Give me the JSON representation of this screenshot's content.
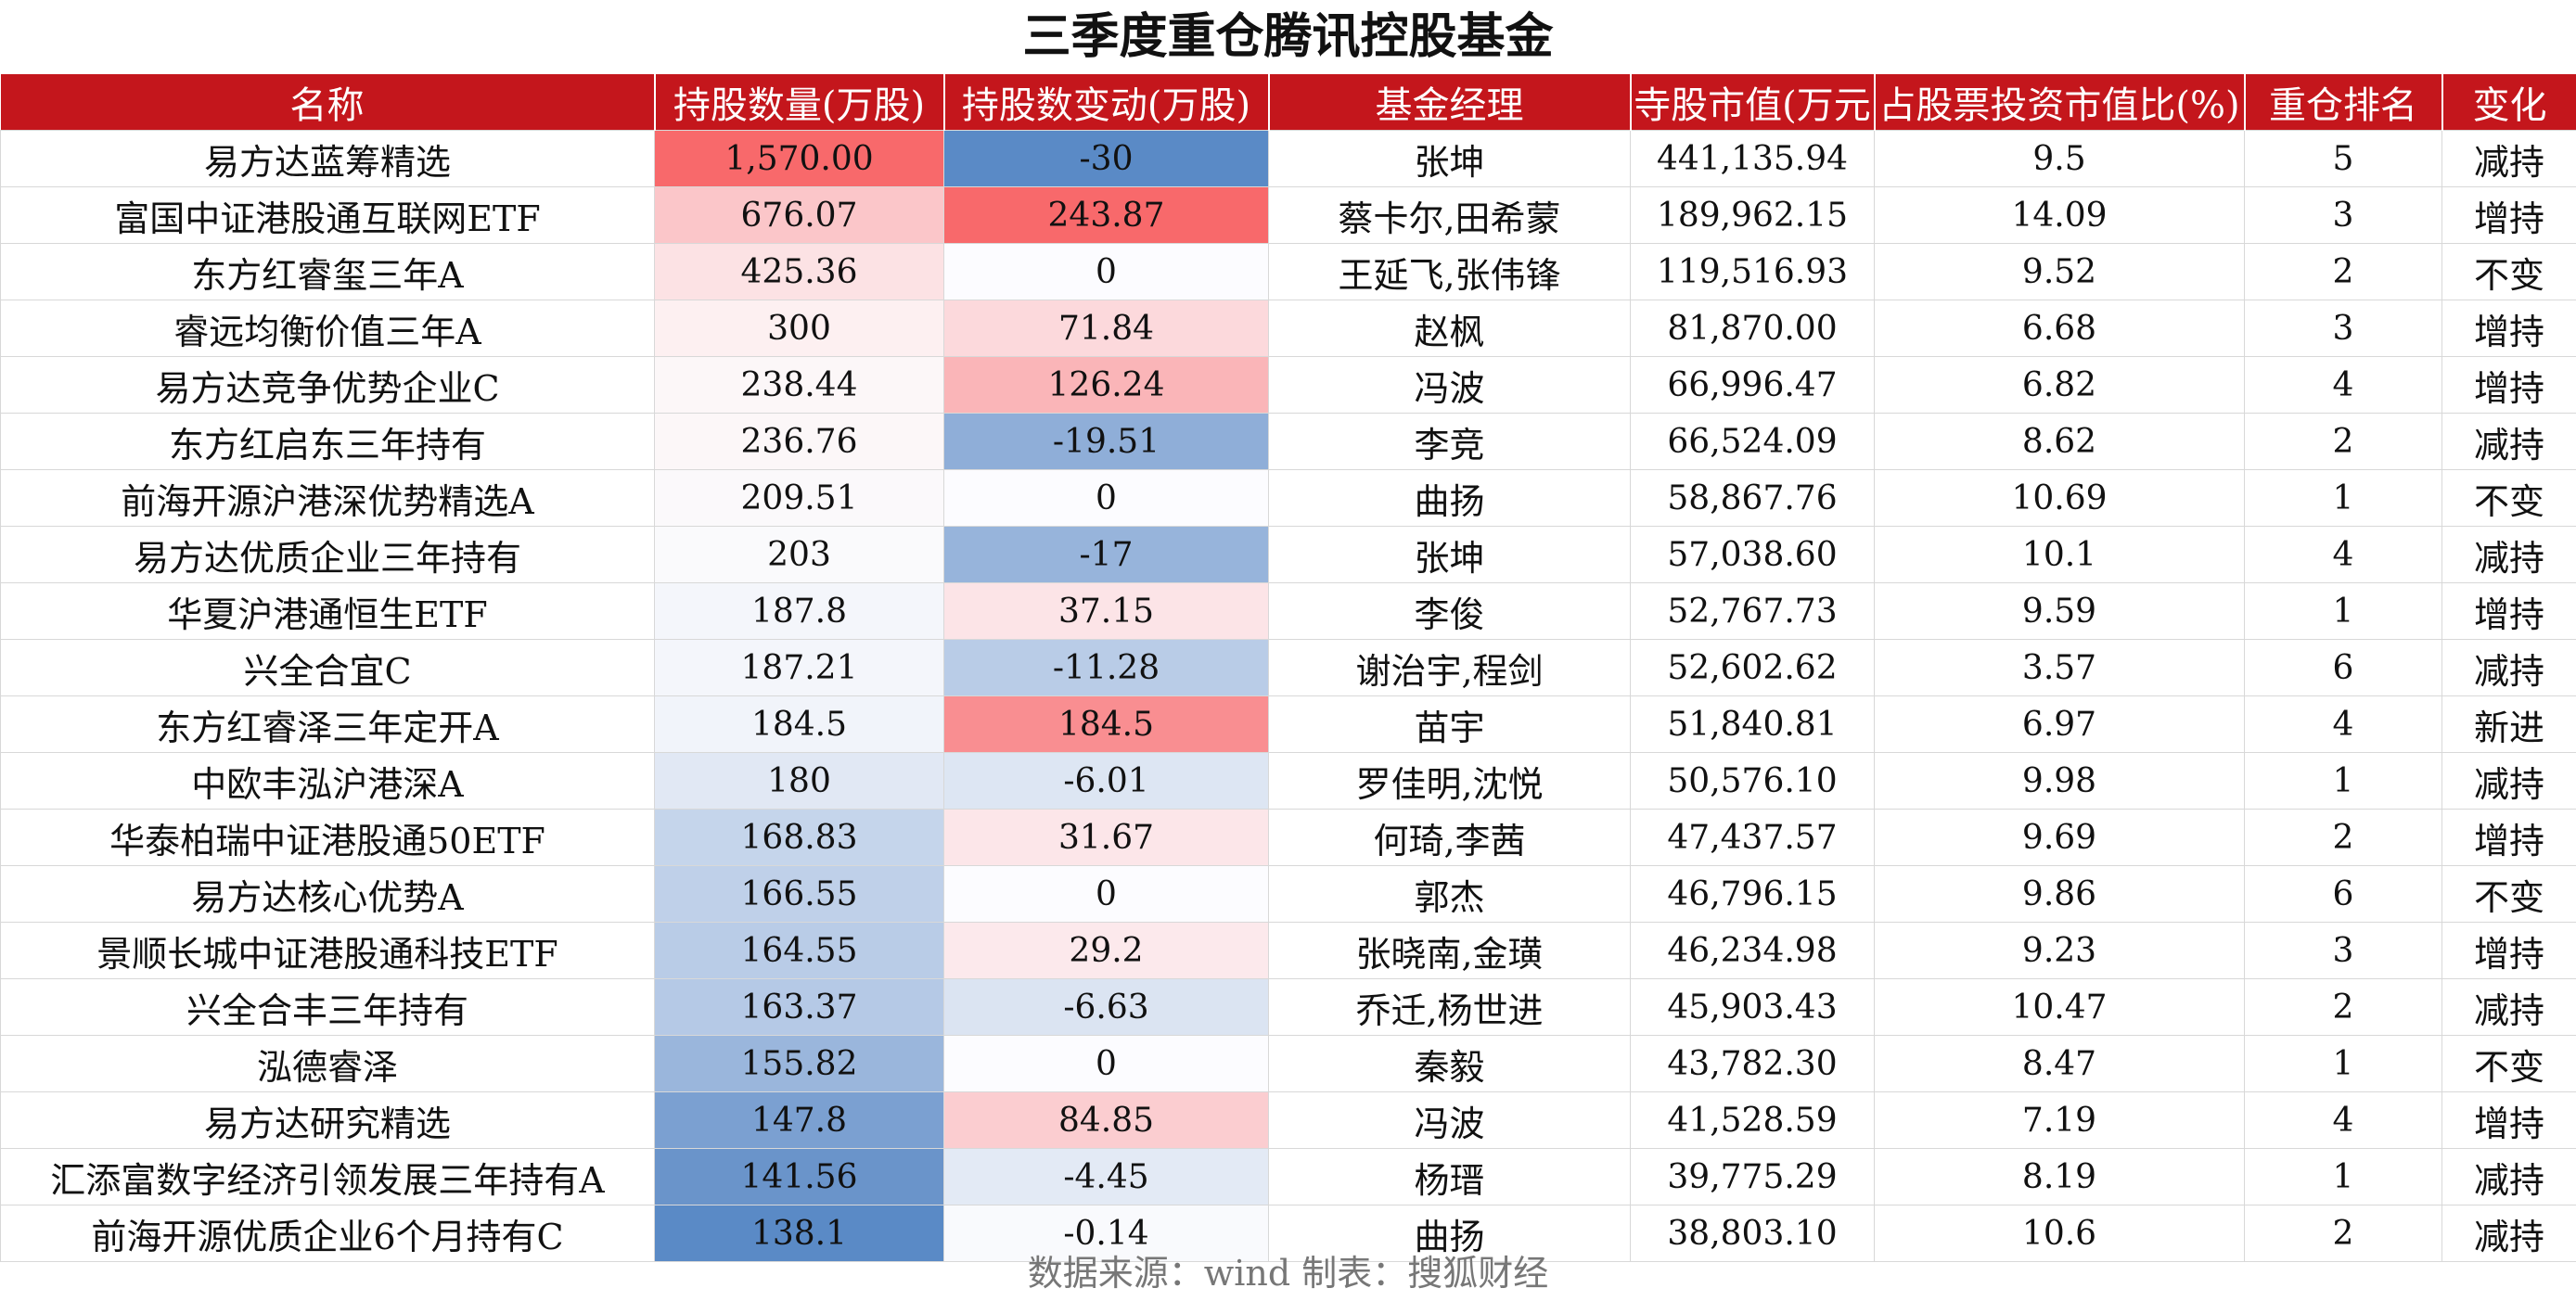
{
  "title": "三季度重仓腾讯控股基金",
  "headers": [
    "名称",
    "持股数量(万股)",
    "持股数变动(万股)",
    "基金经理",
    "寺股市值(万元",
    "占股票投资市值比(%)",
    "重仓排名",
    "变化"
  ],
  "rows": [
    [
      "易方达蓝筹精选",
      "1,570.00",
      "-30",
      "张坤",
      "441,135.94",
      "9.5",
      "5",
      "减持"
    ],
    [
      "富国中证港股通互联网ETF",
      "676.07",
      "243.87",
      "蔡卡尔,田希蒙",
      "189,962.15",
      "14.09",
      "3",
      "增持"
    ],
    [
      "东方红睿玺三年A",
      "425.36",
      "0",
      "王延飞,张伟锋",
      "119,516.93",
      "9.52",
      "2",
      "不变"
    ],
    [
      "睿远均衡价值三年A",
      "300",
      "71.84",
      "赵枫",
      "81,870.00",
      "6.68",
      "3",
      "增持"
    ],
    [
      "易方达竞争优势企业C",
      "238.44",
      "126.24",
      "冯波",
      "66,996.47",
      "6.82",
      "4",
      "增持"
    ],
    [
      "东方红启东三年持有",
      "236.76",
      "-19.51",
      "李竞",
      "66,524.09",
      "8.62",
      "2",
      "减持"
    ],
    [
      "前海开源沪港深优势精选A",
      "209.51",
      "0",
      "曲扬",
      "58,867.76",
      "10.69",
      "1",
      "不变"
    ],
    [
      "易方达优质企业三年持有",
      "203",
      "-17",
      "张坤",
      "57,038.60",
      "10.1",
      "4",
      "减持"
    ],
    [
      "华夏沪港通恒生ETF",
      "187.8",
      "37.15",
      "李俊",
      "52,767.73",
      "9.59",
      "1",
      "增持"
    ],
    [
      "兴全合宜C",
      "187.21",
      "-11.28",
      "谢治宇,程剑",
      "52,602.62",
      "3.57",
      "6",
      "减持"
    ],
    [
      "东方红睿泽三年定开A",
      "184.5",
      "184.5",
      "苗宇",
      "51,840.81",
      "6.97",
      "4",
      "新进"
    ],
    [
      "中欧丰泓沪港深A",
      "180",
      "-6.01",
      "罗佳明,沈悦",
      "50,576.10",
      "9.98",
      "1",
      "减持"
    ],
    [
      "华泰柏瑞中证港股通50ETF",
      "168.83",
      "31.67",
      "何琦,李茜",
      "47,437.57",
      "9.69",
      "2",
      "增持"
    ],
    [
      "易方达核心优势A",
      "166.55",
      "0",
      "郭杰",
      "46,796.15",
      "9.86",
      "6",
      "不变"
    ],
    [
      "景顺长城中证港股通科技ETF",
      "164.55",
      "29.2",
      "张晓南,金璜",
      "46,234.98",
      "9.23",
      "3",
      "增持"
    ],
    [
      "兴全合丰三年持有",
      "163.37",
      "-6.63",
      "乔迁,杨世进",
      "45,903.43",
      "10.47",
      "2",
      "减持"
    ],
    [
      "泓德睿泽",
      "155.82",
      "0",
      "秦毅",
      "43,782.30",
      "8.47",
      "1",
      "不变"
    ],
    [
      "易方达研究精选",
      "147.8",
      "84.85",
      "冯波",
      "41,528.59",
      "7.19",
      "4",
      "增持"
    ],
    [
      "汇添富数字经济引领发展三年持有A",
      "141.56",
      "-4.45",
      "杨瑨",
      "39,775.29",
      "8.19",
      "1",
      "减持"
    ],
    [
      "前海开源优质企业6个月持有C",
      "138.1",
      "-0.14",
      "曲扬",
      "38,803.10",
      "10.6",
      "2",
      "减持"
    ]
  ],
  "heat": {
    "holdings": [
      "#f8696b",
      "#fbc6c9",
      "#fce2e4",
      "#fdf0f1",
      "#fcf7f8",
      "#fcf7f8",
      "#fbf9fb",
      "#fafafc",
      "#f4f6fb",
      "#f4f6fb",
      "#f1f4fa",
      "#e1e8f4",
      "#c5d5eb",
      "#bfd0e9",
      "#b9cce7",
      "#b5c9e6",
      "#9ab6dc",
      "#7ba0d1",
      "#6a94ca",
      "#5a8ac6"
    ],
    "change": [
      "#5a8ac6",
      "#f8696b",
      "#fcfcff",
      "#fcd9dc",
      "#fab5b8",
      "#8faed8",
      "#fcfcff",
      "#97b4db",
      "#fce4e7",
      "#b9cce7",
      "#f98e91",
      "#dde6f3",
      "#fce6e9",
      "#fcfcff",
      "#fce9ec",
      "#dbe4f2",
      "#fcfcff",
      "#fbcdd0",
      "#e3eaf5",
      "#f9fafd"
    ]
  },
  "source": "数据来源：wind  制表：搜狐财经"
}
